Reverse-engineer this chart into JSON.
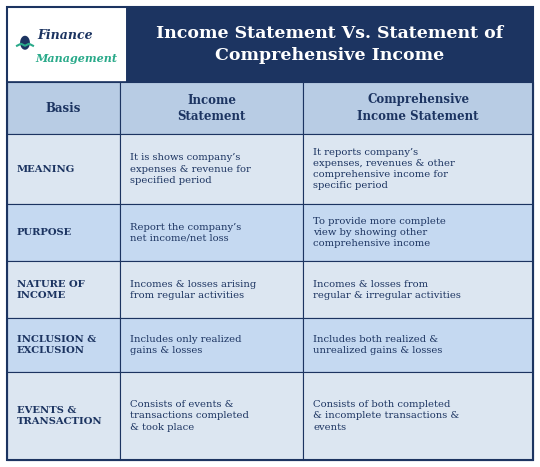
{
  "title": "Income Statement Vs. Statement of\nComprehensive Income",
  "title_bg": "#1c3461",
  "title_color": "#ffffff",
  "header_bg": "#b8cce4",
  "header_color": "#1c3461",
  "row_bg_odd": "#dce6f1",
  "row_bg_even": "#c5d9f1",
  "col_labels": [
    "Basis",
    "Income\nStatement",
    "Comprehensive\nIncome Statement"
  ],
  "rows": [
    {
      "basis": "MEANING",
      "income": "It is shows company’s\nexpenses & revenue for\nspecified period",
      "comprehensive": "It reports company’s\nexpenses, revenues & other\ncomprehensive income for\nspecific period"
    },
    {
      "basis": "PURPOSE",
      "income": "Report the company’s\nnet income/net loss",
      "comprehensive": "To provide more complete\nview by showing other\ncomprehensive income"
    },
    {
      "basis": "NATURE OF\nINCOME",
      "income": "Incomes & losses arising\nfrom regular activities",
      "comprehensive": "Incomes & losses from\nregular & irregular activities"
    },
    {
      "basis": "INCLUSION &\nEXCLUSION",
      "income": "Includes only realized\ngains & losses",
      "comprehensive": "Includes both realized &\nunrealized gains & losses"
    },
    {
      "basis": "EVENTS &\nTRANSACTION",
      "income": "Consists of events &\ntransactions completed\n& took place",
      "comprehensive": "Consists of both completed\n& incomplete transactions &\nevents"
    }
  ],
  "logo_text_top": "Finance",
  "logo_text_bottom": "Management",
  "logo_color_top": "#1c3461",
  "logo_color_bottom": "#2aaa8a",
  "border_color": "#1c3461",
  "cell_text_color": "#1c3461",
  "outer_border_color": "#1c3461"
}
